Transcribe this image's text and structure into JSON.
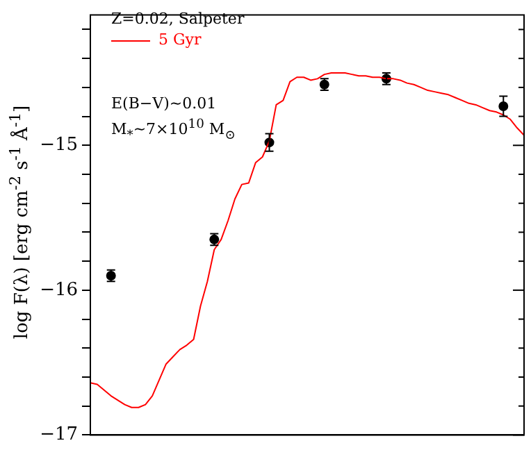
{
  "chart_data": {
    "type": "line",
    "ylabel": "log F(λ) [erg cm$^{-2}$ s$^{-1}$ Å$^{-1}$]",
    "annotations": [
      "Z=0.02, Salpeter",
      "E(B−V)~0.01",
      "M$_{*}$~7×10$^{10}$ M$_{⊙}$"
    ],
    "categories": [
      null,
      null,
      null,
      null,
      null,
      null,
      null,
      null,
      null,
      null,
      null,
      null,
      null,
      null,
      null,
      null,
      null,
      null,
      null,
      null,
      null,
      null,
      null,
      null,
      null,
      null,
      null,
      null,
      null,
      null,
      null,
      null,
      null,
      null,
      null,
      null,
      null,
      null,
      null,
      null,
      null,
      null,
      null,
      null,
      null,
      null,
      null,
      null,
      null,
      null,
      null,
      null,
      null,
      null,
      null,
      null,
      null,
      null,
      null,
      null,
      null,
      null,
      null,
      null
    ],
    "series": [
      {
        "name": "5 Gyr",
        "color": "#ff0000",
        "values": [
          -16.64,
          -16.65,
          -16.69,
          -16.73,
          -16.76,
          -16.79,
          -16.81,
          -16.81,
          -16.79,
          -16.73,
          -16.62,
          -16.51,
          -16.46,
          -16.41,
          -16.38,
          -16.34,
          -16.11,
          -15.94,
          -15.72,
          -15.65,
          -15.52,
          -15.37,
          -15.27,
          -15.26,
          -15.12,
          -15.08,
          -14.97,
          -14.72,
          -14.69,
          -14.56,
          -14.53,
          -14.53,
          -14.55,
          -14.54,
          -14.51,
          -14.5,
          -14.5,
          -14.5,
          -14.51,
          -14.52,
          -14.52,
          -14.53,
          -14.53,
          -14.54,
          -14.54,
          -14.55,
          -14.57,
          -14.58,
          -14.6,
          -14.62,
          -14.63,
          -14.64,
          -14.65,
          -14.67,
          -14.69,
          -14.71,
          -14.72,
          -14.74,
          -14.76,
          -14.77,
          -14.79,
          -14.82,
          -14.88,
          -14.93
        ]
      },
      {
        "type": "scatter",
        "marker": "circle",
        "color": "#000000",
        "values": [
          null,
          null,
          null,
          -15.9,
          null,
          null,
          null,
          null,
          null,
          null,
          null,
          null,
          null,
          null,
          null,
          null,
          null,
          null,
          -15.65,
          null,
          null,
          null,
          null,
          null,
          null,
          null,
          -14.98,
          null,
          null,
          null,
          null,
          null,
          null,
          null,
          -14.58,
          null,
          null,
          null,
          null,
          null,
          null,
          null,
          null,
          -14.54,
          null,
          null,
          null,
          null,
          null,
          null,
          null,
          null,
          null,
          null,
          null,
          null,
          null,
          null,
          null,
          null,
          -14.73,
          null,
          null,
          null
        ],
        "errors": [
          null,
          null,
          null,
          0.04,
          null,
          null,
          null,
          null,
          null,
          null,
          null,
          null,
          null,
          null,
          null,
          null,
          null,
          null,
          0.04,
          null,
          null,
          null,
          null,
          null,
          null,
          null,
          0.06,
          null,
          null,
          null,
          null,
          null,
          null,
          null,
          0.04,
          null,
          null,
          null,
          null,
          null,
          null,
          null,
          null,
          0.04,
          null,
          null,
          null,
          null,
          null,
          null,
          null,
          null,
          null,
          null,
          null,
          null,
          null,
          null,
          null,
          null,
          0.07,
          null,
          null,
          null
        ]
      }
    ],
    "ylim": [
      -17,
      -14.1
    ],
    "yticks": [
      -17,
      {
        "value": -16.8,
        "label": null
      },
      {
        "value": -16.6,
        "label": null
      },
      {
        "value": -16.4,
        "label": null
      },
      {
        "value": -16.2,
        "label": null
      },
      -16,
      {
        "value": -15.8,
        "label": null
      },
      {
        "value": -15.6,
        "label": null
      },
      {
        "value": -15.4,
        "label": null
      },
      {
        "value": -15.2,
        "label": null
      },
      -15,
      {
        "value": -14.8,
        "label": null
      },
      {
        "value": -14.6,
        "label": null
      },
      {
        "value": -14.4,
        "label": null
      },
      {
        "value": -14.2,
        "label": null
      }
    ],
    "tick_labels": "y",
    "legend": "top left",
    "grid": false
  }
}
